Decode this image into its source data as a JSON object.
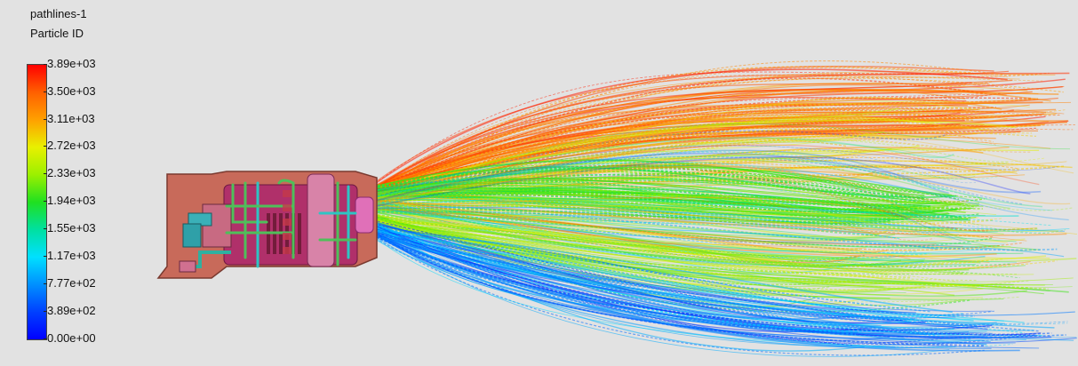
{
  "legend": {
    "title": "pathlines-1",
    "quantity": "Particle ID",
    "ticks": [
      "3.89e+03",
      "3.50e+03",
      "3.11e+03",
      "2.72e+03",
      "2.33e+03",
      "1.94e+03",
      "1.55e+03",
      "1.17e+03",
      "7.77e+02",
      "3.89e+02",
      "0.00e+00"
    ]
  },
  "colors": {
    "background": "#e2e2e2",
    "combustor_body": "#c86a5a",
    "combustor_liner": "#b0306a",
    "fuel_lines": "#4fbf5a"
  }
}
